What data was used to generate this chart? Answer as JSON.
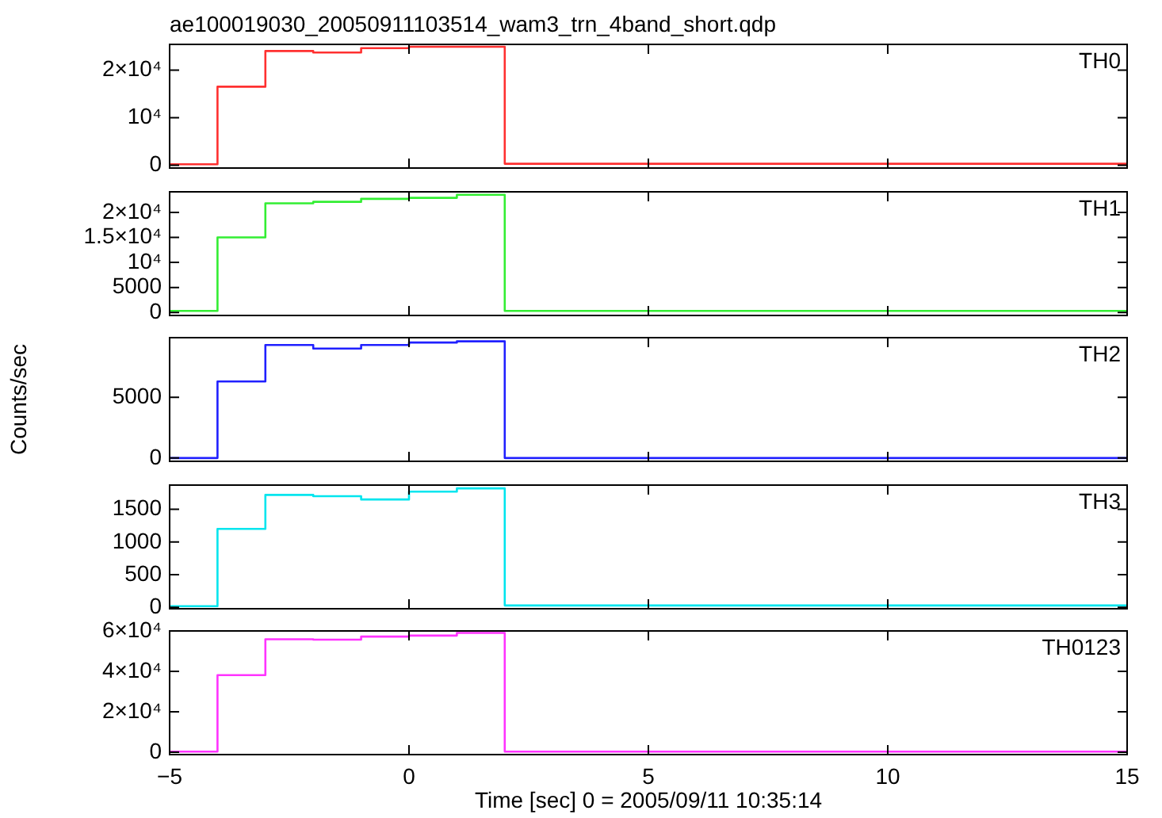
{
  "chart_data": [
    {
      "type": "step",
      "title": "ae100019030_20050911103514_wam3_trn_4band_short.qdp",
      "x": [
        -5,
        -4,
        -3,
        -2,
        -1,
        0,
        1,
        2,
        3,
        4,
        5,
        6,
        7,
        8,
        9,
        10,
        11,
        12,
        13,
        14,
        15
      ],
      "xlim": [
        -5,
        15
      ],
      "xticks": [
        -5,
        0,
        5,
        10,
        15
      ],
      "ylim": [
        -600,
        25400
      ],
      "yticks": [
        0,
        {
          "value": 10000,
          "label": "10⁴"
        },
        {
          "value": 20000,
          "label": "2×10⁴"
        }
      ],
      "tick_labels": "y",
      "series": [
        {
          "name": "TH0",
          "color": "#ff3030",
          "values": [
            200,
            16500,
            24000,
            23700,
            24600,
            24900,
            24900,
            300,
            300,
            300,
            300,
            300,
            300,
            300,
            300,
            300,
            300,
            300,
            300,
            300,
            300
          ]
        }
      ]
    },
    {
      "type": "step",
      "x": [
        -5,
        -4,
        -3,
        -2,
        -1,
        0,
        1,
        2,
        3,
        4,
        5,
        6,
        7,
        8,
        9,
        10,
        11,
        12,
        13,
        14,
        15
      ],
      "xlim": [
        -5,
        15
      ],
      "xticks": [
        -5,
        0,
        5,
        10,
        15
      ],
      "ylim": [
        -600,
        24100
      ],
      "yticks": [
        0,
        5000,
        {
          "value": 10000,
          "label": "10⁴"
        },
        {
          "value": 15000,
          "label": "1.5×10⁴"
        },
        {
          "value": 20000,
          "label": "2×10⁴"
        }
      ],
      "tick_labels": "y",
      "series": [
        {
          "name": "TH1",
          "color": "#33ee33",
          "values": [
            300,
            15000,
            21800,
            22100,
            22700,
            22900,
            23500,
            300,
            300,
            300,
            300,
            300,
            300,
            300,
            300,
            300,
            300,
            300,
            300,
            300,
            300
          ]
        }
      ]
    },
    {
      "type": "step",
      "ylabel": "Counts/sec",
      "x": [
        -5,
        -4,
        -3,
        -2,
        -1,
        0,
        1,
        2,
        3,
        4,
        5,
        6,
        7,
        8,
        9,
        10,
        11,
        12,
        13,
        14,
        15
      ],
      "xlim": [
        -5,
        15
      ],
      "xticks": [
        -5,
        0,
        5,
        10,
        15
      ],
      "ylim": [
        -270,
        9900
      ],
      "yticks": [
        0,
        5000
      ],
      "tick_labels": "y",
      "series": [
        {
          "name": "TH2",
          "color": "#2020ff",
          "values": [
            0,
            6300,
            9300,
            9000,
            9300,
            9500,
            9600,
            0,
            0,
            0,
            0,
            0,
            0,
            0,
            0,
            0,
            0,
            0,
            0,
            0,
            0
          ]
        }
      ]
    },
    {
      "type": "step",
      "x": [
        -5,
        -4,
        -3,
        -2,
        -1,
        0,
        1,
        2,
        3,
        4,
        5,
        6,
        7,
        8,
        9,
        10,
        11,
        12,
        13,
        14,
        15
      ],
      "xlim": [
        -5,
        15
      ],
      "xticks": [
        -5,
        0,
        5,
        10,
        15
      ],
      "ylim": [
        -20,
        1870
      ],
      "yticks": [
        0,
        500,
        1000,
        1500
      ],
      "tick_labels": "y",
      "series": [
        {
          "name": "TH3",
          "color": "#00e5ee",
          "values": [
            20,
            1200,
            1720,
            1700,
            1650,
            1770,
            1820,
            30,
            30,
            30,
            30,
            30,
            30,
            30,
            30,
            30,
            30,
            30,
            30,
            30,
            30
          ]
        }
      ]
    },
    {
      "type": "step",
      "xlabel": "Time [sec] 0 = 2005/09/11 10:35:14",
      "x": [
        -5,
        -4,
        -3,
        -2,
        -1,
        0,
        1,
        2,
        3,
        4,
        5,
        6,
        7,
        8,
        9,
        10,
        11,
        12,
        13,
        14,
        15
      ],
      "xlim": [
        -5,
        15
      ],
      "xticks": [
        {
          "value": -5,
          "label": "−5"
        },
        0,
        5,
        10,
        15
      ],
      "ylim": [
        -1200,
        60000
      ],
      "yticks": [
        0,
        {
          "value": 20000,
          "label": "2×10⁴"
        },
        {
          "value": 40000,
          "label": "4×10⁴"
        },
        {
          "value": 60000,
          "label": "6×10⁴"
        }
      ],
      "series": [
        {
          "name": "TH0123",
          "color": "#ff33ff",
          "values": [
            300,
            38100,
            55900,
            55700,
            57200,
            57700,
            59000,
            300,
            300,
            300,
            300,
            300,
            300,
            300,
            300,
            300,
            300,
            300,
            300,
            300,
            300
          ]
        }
      ]
    }
  ]
}
